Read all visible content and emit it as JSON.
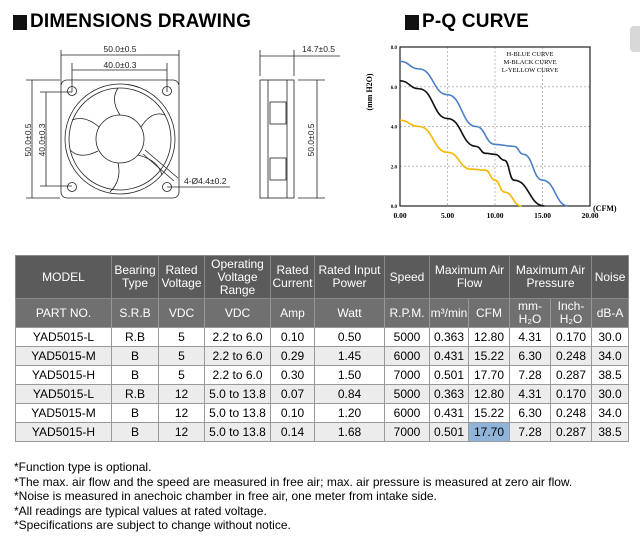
{
  "dimensions": {
    "title": "DIMENSIONS DRAWING",
    "width_outer": "50.0±0.5",
    "width_inner": "40.0±0.3",
    "height_outer": "50.0±0.5",
    "height_inner": "40.0±0.3",
    "hole": "4-Ø4.4±0.2",
    "depth": "14.7±0.5",
    "side_height": "50.0±0.5"
  },
  "pq": {
    "title": "P-Q CURVE"
  },
  "chart_data": {
    "type": "line",
    "title": "P-Q CURVE",
    "xlabel": "(CFM)",
    "ylabel": "(mm H2O)",
    "xlim": [
      0,
      20
    ],
    "ylim": [
      0,
      8
    ],
    "xticks": [
      "0.00",
      "5.00",
      "10.00",
      "15.00",
      "20.00"
    ],
    "yticks": [
      "0.0",
      "2.0",
      "4.0",
      "6.0",
      "8.0"
    ],
    "legend": [
      "H-BLUE CURVE",
      "M-BLACK CURVE",
      "L-YELLOW CURVE"
    ],
    "grid": true,
    "series": [
      {
        "name": "H",
        "color": "#4a7fc8",
        "points": [
          [
            0,
            7.28
          ],
          [
            2,
            6.9
          ],
          [
            5,
            5.6
          ],
          [
            8,
            4.0
          ],
          [
            10,
            3.1
          ],
          [
            12,
            3.0
          ],
          [
            13,
            2.6
          ],
          [
            15,
            1.3
          ],
          [
            17.7,
            0
          ]
        ]
      },
      {
        "name": "M",
        "color": "#111111",
        "points": [
          [
            0,
            6.3
          ],
          [
            2,
            5.9
          ],
          [
            5,
            4.4
          ],
          [
            8,
            3.0
          ],
          [
            9,
            2.65
          ],
          [
            10,
            2.6
          ],
          [
            11,
            2.3
          ],
          [
            12,
            1.3
          ],
          [
            15.2,
            0
          ]
        ]
      },
      {
        "name": "L",
        "color": "#f5b800",
        "points": [
          [
            0,
            4.31
          ],
          [
            2,
            4.0
          ],
          [
            5,
            2.7
          ],
          [
            7.5,
            1.85
          ],
          [
            9,
            1.8
          ],
          [
            10,
            1.3
          ],
          [
            11,
            0.7
          ],
          [
            12.8,
            0
          ]
        ]
      }
    ]
  },
  "table": {
    "header1": [
      "MODEL",
      "Bearing Type",
      "Rated Voltage",
      "Operating Voltage Range",
      "Rated Current",
      "Rated Input Power",
      "Speed",
      "Maximum Air Flow",
      "Maximum Air Pressure",
      "Noise"
    ],
    "header2": [
      "PART NO.",
      "S.R.B",
      "VDC",
      "VDC",
      "Amp",
      "Watt",
      "R.P.M.",
      "m³/min",
      "CFM",
      "mm-H₂O",
      "Inch-H₂O",
      "dB-A"
    ],
    "rows": [
      [
        "YAD5015-L",
        "R.B",
        "5",
        "2.2 to 6.0",
        "0.10",
        "0.50",
        "5000",
        "0.363",
        "12.80",
        "4.31",
        "0.170",
        "30.0"
      ],
      [
        "YAD5015-M",
        "B",
        "5",
        "2.2 to 6.0",
        "0.29",
        "1.45",
        "6000",
        "0.431",
        "15.22",
        "6.30",
        "0.248",
        "34.0"
      ],
      [
        "YAD5015-H",
        "B",
        "5",
        "2.2 to 6.0",
        "0.30",
        "1.50",
        "7000",
        "0.501",
        "17.70",
        "7.28",
        "0.287",
        "38.5"
      ],
      [
        "YAD5015-L",
        "R.B",
        "12",
        "5.0 to 13.8",
        "0.07",
        "0.84",
        "5000",
        "0.363",
        "12.80",
        "4.31",
        "0.170",
        "30.0"
      ],
      [
        "YAD5015-M",
        "B",
        "12",
        "5.0 to 13.8",
        "0.10",
        "1.20",
        "6000",
        "0.431",
        "15.22",
        "6.30",
        "0.248",
        "34.0"
      ],
      [
        "YAD5015-H",
        "B",
        "12",
        "5.0 to 13.8",
        "0.14",
        "1.68",
        "7000",
        "0.501",
        "17.70",
        "7.28",
        "0.287",
        "38.5"
      ]
    ]
  },
  "notes": [
    "*Function type is optional.",
    "*The max. air flow and the speed are measured in free air; max. air pressure is measured at zero air flow.",
    "*Noise is measured in anechoic chamber in free air, one meter from intake side.",
    "*All readings are typical values at rated voltage.",
    "*Specifications are subject to change without notice."
  ]
}
